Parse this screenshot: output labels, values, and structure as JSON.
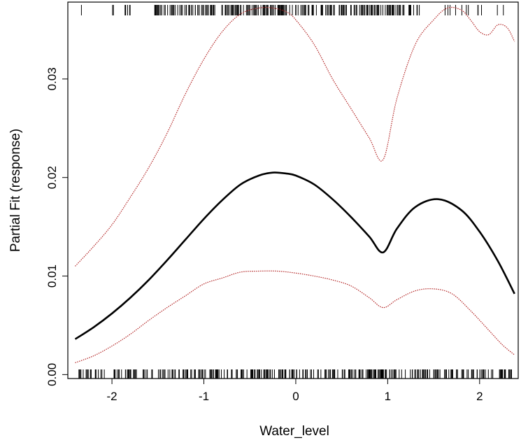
{
  "chart_data": {
    "type": "line",
    "title": "",
    "xlabel": "Water_level",
    "ylabel": "Partial Fit (response)",
    "xlim": [
      -2.48,
      2.42
    ],
    "ylim": [
      -0.0004,
      0.0378
    ],
    "x_ticks": [
      -2,
      -1,
      0,
      1,
      2
    ],
    "x_tick_labels": [
      "-2",
      "-1",
      "0",
      "1",
      "2"
    ],
    "y_ticks": [
      0.0,
      0.01,
      0.02,
      0.03
    ],
    "y_tick_labels": [
      "0.00",
      "0.01",
      "0.02",
      "0.03"
    ],
    "grid": false,
    "rug": true,
    "series": [
      {
        "role": "fit",
        "color": "#000000",
        "style": "solid",
        "x": [
          -2.4,
          -2.2,
          -2.0,
          -1.8,
          -1.6,
          -1.4,
          -1.2,
          -1.0,
          -0.8,
          -0.6,
          -0.4,
          -0.25,
          -0.1,
          0.0,
          0.2,
          0.4,
          0.6,
          0.8,
          0.95,
          1.1,
          1.3,
          1.55,
          1.8,
          2.0,
          2.2,
          2.38
        ],
        "y": [
          0.0036,
          0.0048,
          0.0062,
          0.0078,
          0.0096,
          0.0116,
          0.0137,
          0.0158,
          0.0177,
          0.0193,
          0.0202,
          0.0205,
          0.0204,
          0.0202,
          0.0193,
          0.0178,
          0.016,
          0.014,
          0.0124,
          0.0148,
          0.017,
          0.0178,
          0.0167,
          0.0145,
          0.0115,
          0.0082
        ]
      },
      {
        "role": "upper-band",
        "color": "#b22222",
        "style": "dotted",
        "x": [
          -2.4,
          -2.2,
          -2.0,
          -1.8,
          -1.6,
          -1.4,
          -1.2,
          -1.0,
          -0.8,
          -0.6,
          -0.4,
          -0.25,
          -0.1,
          0.0,
          0.2,
          0.4,
          0.6,
          0.8,
          0.95,
          1.1,
          1.3,
          1.5,
          1.65,
          1.8,
          1.9,
          2.0,
          2.1,
          2.2,
          2.3,
          2.38
        ],
        "y": [
          0.011,
          0.013,
          0.0152,
          0.018,
          0.021,
          0.0245,
          0.0285,
          0.032,
          0.0348,
          0.0366,
          0.0372,
          0.0372,
          0.0368,
          0.036,
          0.0335,
          0.03,
          0.027,
          0.024,
          0.0218,
          0.028,
          0.0335,
          0.036,
          0.0372,
          0.037,
          0.036,
          0.0348,
          0.0345,
          0.0355,
          0.0352,
          0.0338
        ]
      },
      {
        "role": "lower-band",
        "color": "#b22222",
        "style": "dotted",
        "x": [
          -2.4,
          -2.2,
          -2.0,
          -1.8,
          -1.6,
          -1.4,
          -1.2,
          -1.0,
          -0.8,
          -0.6,
          -0.4,
          -0.2,
          0.0,
          0.2,
          0.4,
          0.6,
          0.8,
          0.95,
          1.1,
          1.3,
          1.5,
          1.7,
          1.9,
          2.1,
          2.25,
          2.38
        ],
        "y": [
          0.0012,
          0.0019,
          0.0029,
          0.0041,
          0.0055,
          0.0068,
          0.008,
          0.0092,
          0.0098,
          0.0104,
          0.0105,
          0.0105,
          0.0103,
          0.01,
          0.0096,
          0.009,
          0.0078,
          0.0068,
          0.0076,
          0.0085,
          0.0087,
          0.0082,
          0.0065,
          0.0045,
          0.003,
          0.002
        ]
      }
    ]
  }
}
